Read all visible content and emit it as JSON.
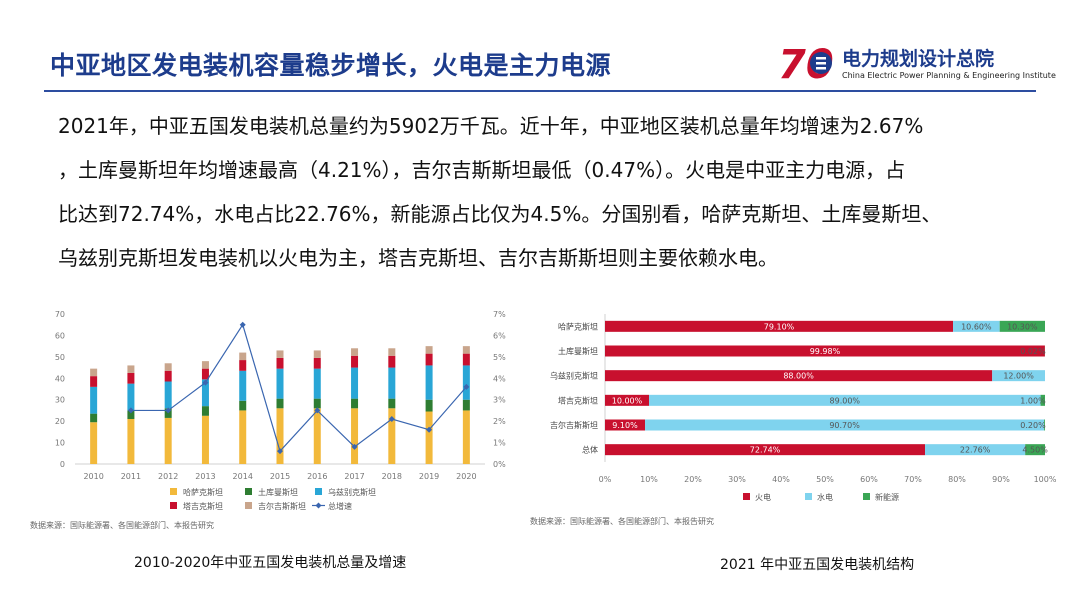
{
  "header": {
    "title": "中亚地区发电装机容量稳步增长，火电是主力电源",
    "logo_mark": "70",
    "logo_cn": "电力规划设计总院",
    "logo_en": "China Electric Power Planning & Engineering Institute"
  },
  "body": {
    "lines": [
      "2021年，中亚五国发电装机总量约为5902万千瓦。近十年，中亚地区装机总量年均增速为2.67%",
      "，土库曼斯坦年均增速最高（4.21%），吉尔吉斯斯坦最低（0.47%）。火电是中亚主力电源，占",
      "比达到72.74%，水电占比22.76%，新能源占比仅为4.5%。分国别看，哈萨克斯坦、土库曼斯坦、",
      "乌兹别克斯坦发电装机以火电为主，塔吉克斯坦、吉尔吉斯斯坦则主要依赖水电。"
    ]
  },
  "colors": {
    "title": "#1d3c8c",
    "kazakhstan": "#f2b93b",
    "turkmenistan": "#2e7d32",
    "uzbekistan": "#29a6d6",
    "tajikistan": "#c8102e",
    "kyrgyzstan": "#c9a58c",
    "growth": "#3a66b0",
    "thermal": "#c8102e",
    "hydro": "#7fd3ee",
    "renewable": "#3aa655"
  },
  "captions": {
    "left": "2010-2020年中亚五国发电装机总量及增速",
    "right": "2021 年中亚五国发电装机结构"
  },
  "chart_data": [
    {
      "type": "bar",
      "stacked": true,
      "categories": [
        "2010",
        "2011",
        "2012",
        "2013",
        "2014",
        "2015",
        "2016",
        "2017",
        "2018",
        "2019",
        "2020"
      ],
      "series": [
        {
          "name": "哈萨克斯坦",
          "values": [
            19.5,
            21,
            21.5,
            22.5,
            25,
            26,
            26,
            26,
            26,
            24.5,
            25
          ]
        },
        {
          "name": "土库曼斯坦",
          "values": [
            4,
            4,
            4.5,
            4.5,
            4.5,
            4.5,
            4.5,
            4.5,
            4.5,
            5.5,
            5
          ]
        },
        {
          "name": "乌兹别克斯坦",
          "values": [
            12.5,
            12.5,
            12.5,
            12.5,
            14,
            14,
            14,
            14.5,
            14.5,
            16,
            16
          ]
        },
        {
          "name": "塔吉克斯坦",
          "values": [
            5,
            5,
            5,
            5,
            5,
            5,
            5,
            5.5,
            5.5,
            5.5,
            5.5
          ]
        },
        {
          "name": "吉尔吉斯斯坦",
          "values": [
            3.5,
            3.5,
            3.5,
            3.5,
            3.5,
            3.5,
            3.5,
            3.5,
            3.5,
            3.5,
            3.5
          ]
        }
      ],
      "line_series": {
        "name": "总增速",
        "axis": "right",
        "values": [
          null,
          2.5,
          2.5,
          3.8,
          6.5,
          0.6,
          2.5,
          0.8,
          2.1,
          1.6,
          3.6
        ]
      },
      "ylim": [
        0,
        70
      ],
      "yticks": [
        0,
        10,
        20,
        30,
        40,
        50,
        60,
        70
      ],
      "y2lim": [
        0,
        7
      ],
      "y2ticks": [
        "0%",
        "1%",
        "2%",
        "3%",
        "4%",
        "5%",
        "6%",
        "7%"
      ],
      "legend": [
        "哈萨克斯坦",
        "土库曼斯坦",
        "乌兹别克斯坦",
        "塔吉克斯坦",
        "吉尔吉斯斯坦",
        "总增速"
      ],
      "legend_position": "bottom",
      "source": "数据来源：国际能源署、各国能源部门、本报告研究",
      "grid": false
    },
    {
      "type": "bar",
      "orientation": "horizontal",
      "stacked_percent": true,
      "categories": [
        "哈萨克斯坦",
        "土库曼斯坦",
        "乌兹别克斯坦",
        "塔吉克斯坦",
        "吉尔吉斯斯坦",
        "总体"
      ],
      "series": [
        {
          "name": "火电",
          "values": [
            79.1,
            99.98,
            88.0,
            10.0,
            9.1,
            72.74
          ],
          "labels": [
            "79.10%",
            "99.98%",
            "88.00%",
            "10.00%",
            "9.10%",
            "72.74%"
          ]
        },
        {
          "name": "水电",
          "values": [
            10.6,
            0.0,
            12.0,
            89.0,
            90.7,
            22.76
          ],
          "labels": [
            "10.60%",
            "",
            "12.00%",
            "89.00%",
            "90.70%",
            "22.76%"
          ]
        },
        {
          "name": "新能源",
          "values": [
            10.3,
            0.02,
            0.0,
            1.0,
            0.2,
            4.5
          ],
          "labels": [
            "10.30%",
            "0.02%",
            "",
            "1.00%",
            "0.20%",
            "4.50%"
          ]
        }
      ],
      "xlim": [
        0,
        100
      ],
      "xticks": [
        "0%",
        "10%",
        "20%",
        "30%",
        "40%",
        "50%",
        "60%",
        "70%",
        "80%",
        "90%",
        "100%"
      ],
      "legend": [
        "火电",
        "水电",
        "新能源"
      ],
      "legend_position": "bottom",
      "source": "数据来源：国际能源署、各国能源部门、本报告研究",
      "grid": false
    }
  ]
}
